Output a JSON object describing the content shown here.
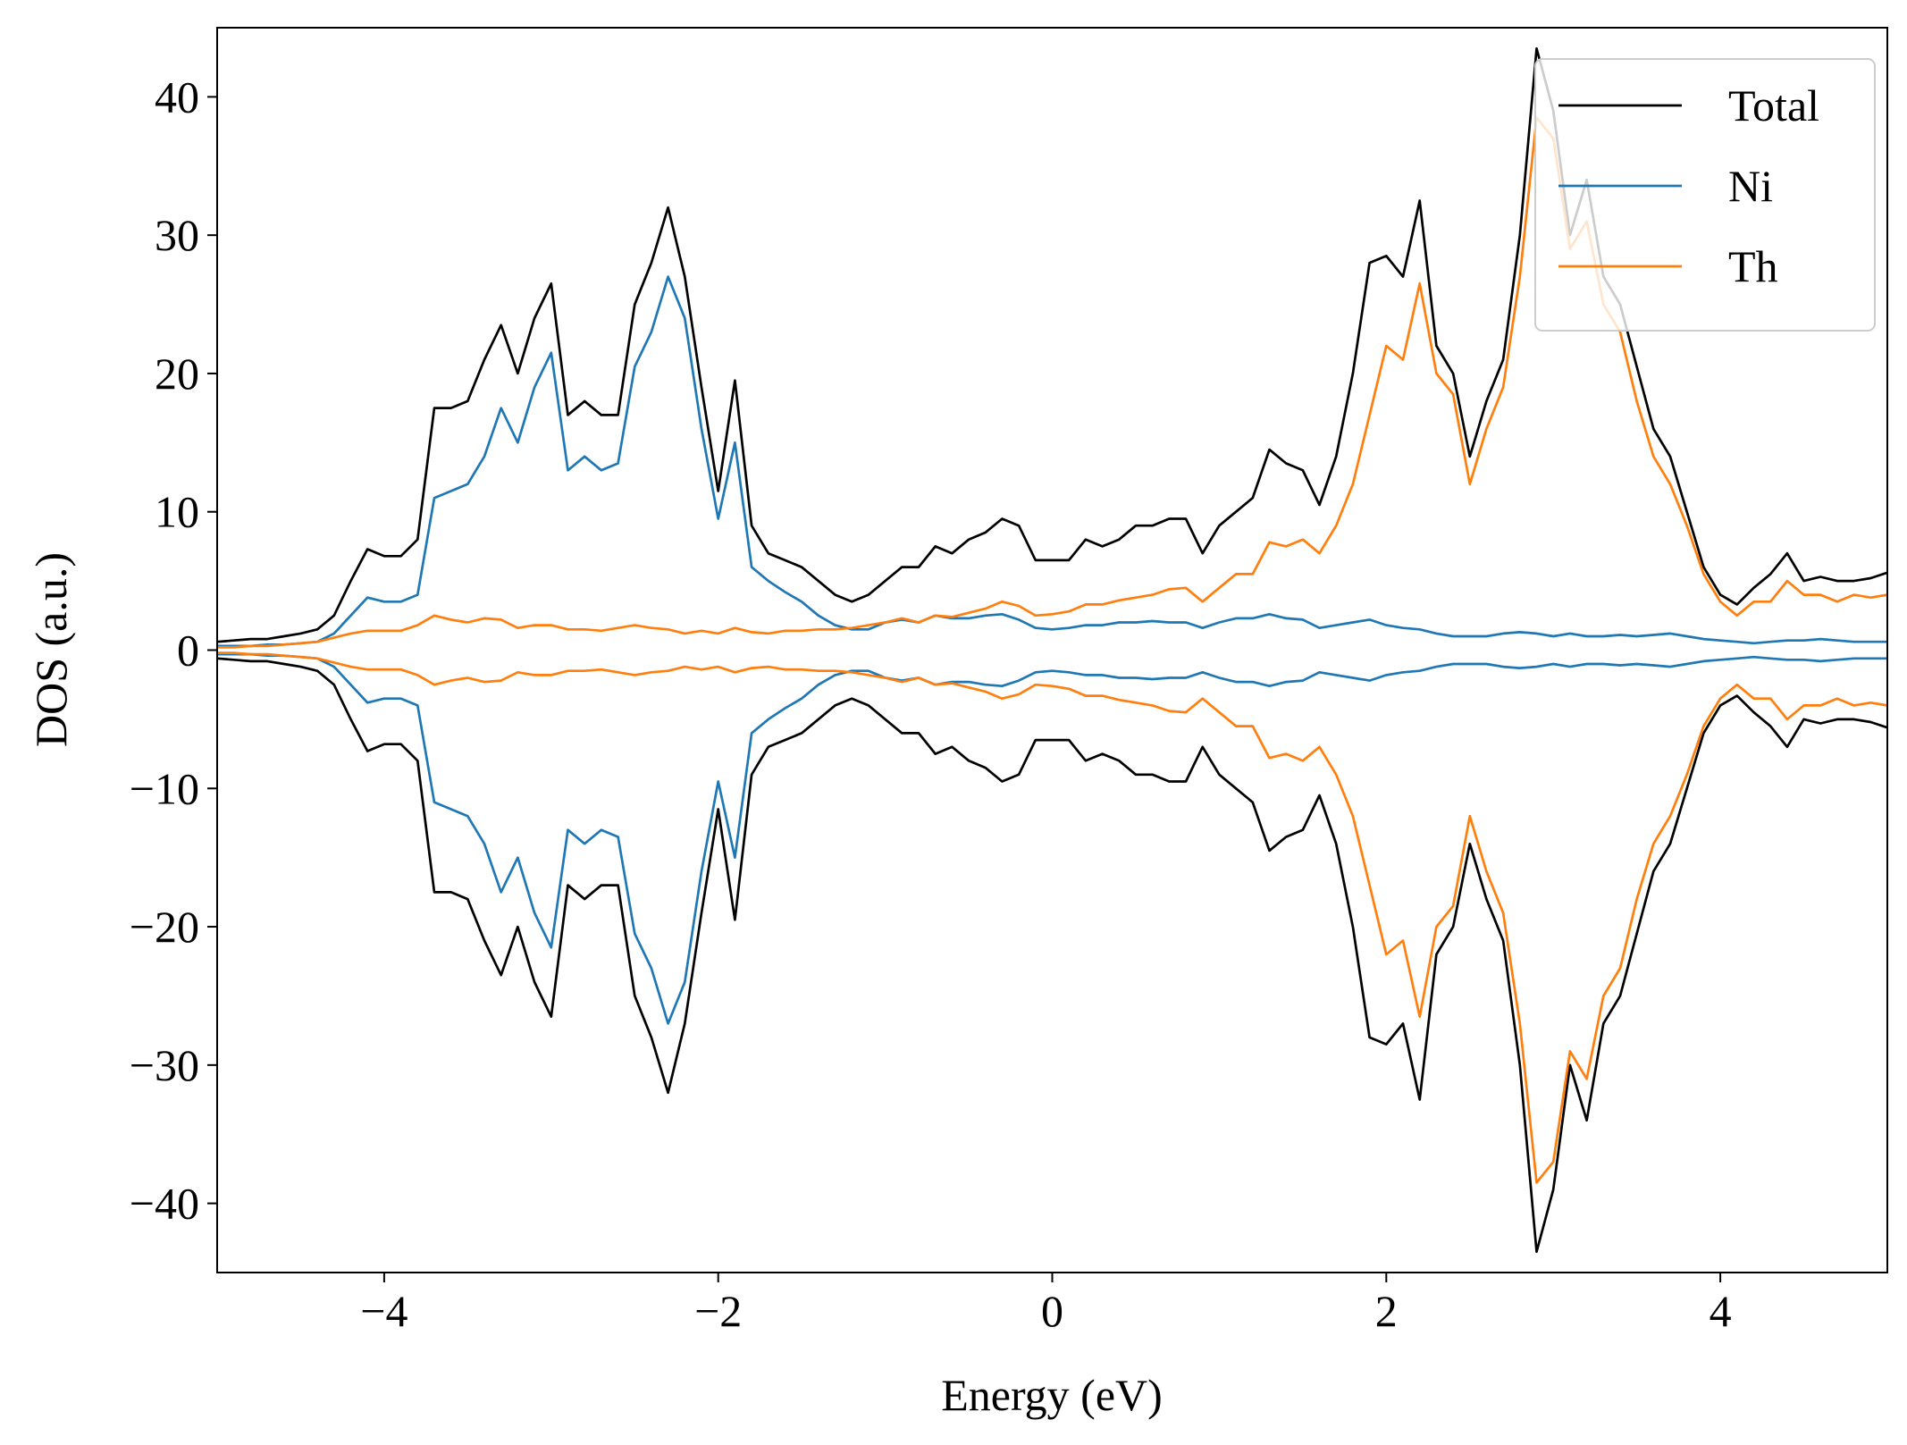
{
  "chart_data": {
    "type": "line",
    "xlabel": "Energy (eV)",
    "ylabel": "DOS (a.u.)",
    "xlim": [
      -5,
      5
    ],
    "ylim": [
      -45,
      45
    ],
    "xticks": [
      {
        "value": -4,
        "label": "−4"
      },
      {
        "value": -2,
        "label": "−2"
      },
      0,
      2,
      4
    ],
    "yticks": [
      {
        "value": -40,
        "label": "−40"
      },
      {
        "value": -30,
        "label": "−30"
      },
      {
        "value": -20,
        "label": "−20"
      },
      {
        "value": -10,
        "label": "−10"
      },
      0,
      10,
      20,
      30,
      40
    ],
    "legend": "upper right",
    "grid": false,
    "x": [
      -5.0,
      -4.9,
      -4.8,
      -4.7,
      -4.6,
      -4.5,
      -4.4,
      -4.3,
      -4.2,
      -4.1,
      -4.0,
      -3.9,
      -3.8,
      -3.7,
      -3.6,
      -3.5,
      -3.4,
      -3.3,
      -3.2,
      -3.1,
      -3.0,
      -2.9,
      -2.8,
      -2.7,
      -2.6,
      -2.5,
      -2.4,
      -2.3,
      -2.2,
      -2.1,
      -2.0,
      -1.9,
      -1.8,
      -1.7,
      -1.6,
      -1.5,
      -1.4,
      -1.3,
      -1.2,
      -1.1,
      -1.0,
      -0.9,
      -0.8,
      -0.7,
      -0.6,
      -0.5,
      -0.4,
      -0.3,
      -0.2,
      -0.1,
      0.0,
      0.1,
      0.2,
      0.3,
      0.4,
      0.5,
      0.6,
      0.7,
      0.8,
      0.9,
      1.0,
      1.1,
      1.2,
      1.3,
      1.4,
      1.5,
      1.6,
      1.7,
      1.8,
      1.9,
      2.0,
      2.1,
      2.2,
      2.3,
      2.4,
      2.5,
      2.6,
      2.7,
      2.8,
      2.9,
      3.0,
      3.1,
      3.2,
      3.3,
      3.4,
      3.5,
      3.6,
      3.7,
      3.8,
      3.9,
      4.0,
      4.1,
      4.2,
      4.3,
      4.4,
      4.5,
      4.6,
      4.7,
      4.8,
      4.9,
      5.0
    ],
    "series": [
      {
        "name": "Total",
        "color": "#000000",
        "values": [
          0.6,
          0.7,
          0.8,
          0.8,
          1.0,
          1.2,
          1.5,
          2.5,
          5.0,
          7.3,
          6.8,
          6.8,
          8.0,
          17.5,
          17.5,
          18.0,
          21,
          23.5,
          20,
          24,
          26.5,
          17,
          18,
          17,
          17,
          25,
          28,
          32,
          27,
          19,
          11.5,
          19.5,
          9,
          7,
          6.5,
          6,
          5,
          4,
          3.5,
          4,
          5,
          6,
          6,
          7.5,
          7,
          8,
          8.5,
          9.5,
          9,
          6.5,
          6.5,
          6.5,
          8,
          7.5,
          8,
          9,
          9,
          9.5,
          9.5,
          7,
          9,
          10,
          11,
          14.5,
          13.5,
          13,
          10.5,
          14,
          20,
          28,
          28.5,
          27,
          32.5,
          22,
          20,
          14,
          18,
          21,
          30,
          43.5,
          39,
          30,
          34,
          27,
          25,
          20.5,
          16,
          14,
          10,
          6,
          4,
          3.3,
          4.5,
          5.5,
          7,
          5,
          5.3,
          5.0,
          5.0,
          5.2,
          5.6
        ],
        "values_down": [
          -0.6,
          -0.7,
          -0.8,
          -0.8,
          -1.0,
          -1.2,
          -1.5,
          -2.5,
          -5.0,
          -7.3,
          -6.8,
          -6.8,
          -8.0,
          -17.5,
          -17.5,
          -18.0,
          -21,
          -23.5,
          -20,
          -24,
          -26.5,
          -17,
          -18,
          -17,
          -17,
          -25,
          -28,
          -32,
          -27,
          -19,
          -11.5,
          -19.5,
          -9,
          -7,
          -6.5,
          -6,
          -5,
          -4,
          -3.5,
          -4,
          -5,
          -6,
          -6,
          -7.5,
          -7,
          -8,
          -8.5,
          -9.5,
          -9,
          -6.5,
          -6.5,
          -6.5,
          -8,
          -7.5,
          -8,
          -9,
          -9,
          -9.5,
          -9.5,
          -7,
          -9,
          -10,
          -11,
          -14.5,
          -13.5,
          -13,
          -10.5,
          -14,
          -20,
          -28,
          -28.5,
          -27,
          -32.5,
          -22,
          -20,
          -14,
          -18,
          -21,
          -30,
          -43.5,
          -39,
          -30,
          -34,
          -27,
          -25,
          -20.5,
          -16,
          -14,
          -10,
          -6,
          -4,
          -3.3,
          -4.5,
          -5.5,
          -7,
          -5,
          -5.3,
          -5.0,
          -5.0,
          -5.2,
          -5.6
        ]
      },
      {
        "name": "Ni",
        "color": "#1f77b4",
        "values": [
          0.3,
          0.3,
          0.3,
          0.4,
          0.4,
          0.5,
          0.6,
          1.2,
          2.5,
          3.8,
          3.5,
          3.5,
          4,
          11,
          11.5,
          12,
          14,
          17.5,
          15,
          19,
          21.5,
          13,
          14,
          13,
          13.5,
          20.5,
          23,
          27,
          24,
          16,
          9.5,
          15,
          6,
          5,
          4.2,
          3.5,
          2.5,
          1.8,
          1.5,
          1.5,
          2,
          2.2,
          2.0,
          2.5,
          2.3,
          2.3,
          2.5,
          2.6,
          2.2,
          1.6,
          1.5,
          1.6,
          1.8,
          1.8,
          2.0,
          2.0,
          2.1,
          2.0,
          2.0,
          1.6,
          2.0,
          2.3,
          2.3,
          2.6,
          2.3,
          2.2,
          1.6,
          1.8,
          2.0,
          2.2,
          1.8,
          1.6,
          1.5,
          1.2,
          1.0,
          1.0,
          1.0,
          1.2,
          1.3,
          1.2,
          1.0,
          1.2,
          1.0,
          1.0,
          1.1,
          1.0,
          1.1,
          1.2,
          1.0,
          0.8,
          0.7,
          0.6,
          0.5,
          0.6,
          0.7,
          0.7,
          0.8,
          0.7,
          0.6,
          0.6,
          0.6
        ],
        "values_down": [
          -0.3,
          -0.3,
          -0.3,
          -0.4,
          -0.4,
          -0.5,
          -0.6,
          -1.2,
          -2.5,
          -3.8,
          -3.5,
          -3.5,
          -4,
          -11,
          -11.5,
          -12,
          -14,
          -17.5,
          -15,
          -19,
          -21.5,
          -13,
          -14,
          -13,
          -13.5,
          -20.5,
          -23,
          -27,
          -24,
          -16,
          -9.5,
          -15,
          -6,
          -5,
          -4.2,
          -3.5,
          -2.5,
          -1.8,
          -1.5,
          -1.5,
          -2,
          -2.2,
          -2.0,
          -2.5,
          -2.3,
          -2.3,
          -2.5,
          -2.6,
          -2.2,
          -1.6,
          -1.5,
          -1.6,
          -1.8,
          -1.8,
          -2.0,
          -2.0,
          -2.1,
          -2.0,
          -2.0,
          -1.6,
          -2.0,
          -2.3,
          -2.3,
          -2.6,
          -2.3,
          -2.2,
          -1.6,
          -1.8,
          -2.0,
          -2.2,
          -1.8,
          -1.6,
          -1.5,
          -1.2,
          -1.0,
          -1.0,
          -1.0,
          -1.2,
          -1.3,
          -1.2,
          -1.0,
          -1.2,
          -1.0,
          -1.0,
          -1.1,
          -1.0,
          -1.1,
          -1.2,
          -1.0,
          -0.8,
          -0.7,
          -0.6,
          -0.5,
          -0.6,
          -0.7,
          -0.7,
          -0.8,
          -0.7,
          -0.6,
          -0.6,
          -0.6
        ]
      },
      {
        "name": "Th",
        "color": "#ff7f0e",
        "values": [
          0.2,
          0.2,
          0.3,
          0.3,
          0.4,
          0.5,
          0.6,
          0.9,
          1.2,
          1.4,
          1.4,
          1.4,
          1.8,
          2.5,
          2.2,
          2.0,
          2.3,
          2.2,
          1.6,
          1.8,
          1.8,
          1.5,
          1.5,
          1.4,
          1.6,
          1.8,
          1.6,
          1.5,
          1.2,
          1.4,
          1.2,
          1.6,
          1.3,
          1.2,
          1.4,
          1.4,
          1.5,
          1.5,
          1.6,
          1.8,
          2.0,
          2.3,
          2.0,
          2.5,
          2.4,
          2.7,
          3.0,
          3.5,
          3.2,
          2.5,
          2.6,
          2.8,
          3.3,
          3.3,
          3.6,
          3.8,
          4.0,
          4.4,
          4.5,
          3.5,
          4.5,
          5.5,
          5.5,
          7.8,
          7.5,
          8.0,
          7.0,
          9,
          12,
          17,
          22,
          21,
          26.5,
          20,
          18.5,
          12,
          16,
          19,
          27,
          38.5,
          37,
          29,
          31,
          25,
          23,
          18,
          14,
          12,
          9,
          5.5,
          3.5,
          2.5,
          3.5,
          3.5,
          5,
          4,
          4.0,
          3.5,
          4.0,
          3.8,
          4.0
        ],
        "values_down": [
          -0.2,
          -0.2,
          -0.3,
          -0.3,
          -0.4,
          -0.5,
          -0.6,
          -0.9,
          -1.2,
          -1.4,
          -1.4,
          -1.4,
          -1.8,
          -2.5,
          -2.2,
          -2.0,
          -2.3,
          -2.2,
          -1.6,
          -1.8,
          -1.8,
          -1.5,
          -1.5,
          -1.4,
          -1.6,
          -1.8,
          -1.6,
          -1.5,
          -1.2,
          -1.4,
          -1.2,
          -1.6,
          -1.3,
          -1.2,
          -1.4,
          -1.4,
          -1.5,
          -1.5,
          -1.6,
          -1.8,
          -2.0,
          -2.3,
          -2.0,
          -2.5,
          -2.4,
          -2.7,
          -3.0,
          -3.5,
          -3.2,
          -2.5,
          -2.6,
          -2.8,
          -3.3,
          -3.3,
          -3.6,
          -3.8,
          -4.0,
          -4.4,
          -4.5,
          -3.5,
          -4.5,
          -5.5,
          -5.5,
          -7.8,
          -7.5,
          -8.0,
          -7.0,
          -9,
          -12,
          -17,
          -22,
          -21,
          -26.5,
          -20,
          -18.5,
          -12,
          -16,
          -19,
          -27,
          -38.5,
          -37,
          -29,
          -31,
          -25,
          -23,
          -18,
          -14,
          -12,
          -9,
          -5.5,
          -3.5,
          -2.5,
          -3.5,
          -3.5,
          -5,
          -4,
          -4.0,
          -3.5,
          -4.0,
          -3.8,
          -4.0
        ]
      }
    ]
  }
}
